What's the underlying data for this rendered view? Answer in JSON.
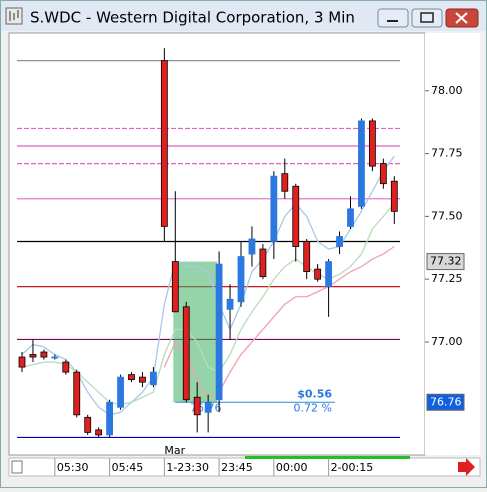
{
  "chart_data": {
    "type": "candlestick",
    "title": "S.WDC - Western Digital Corporation, 3 Min",
    "date_label": "Mar",
    "categories": [
      null,
      null,
      null,
      "05:30",
      null,
      null,
      null,
      null,
      "05:45",
      null,
      null,
      null,
      null,
      "1-23:30",
      null,
      null,
      null,
      null,
      "23:45",
      null,
      null,
      null,
      null,
      "00:00",
      null,
      null,
      null,
      null,
      "2-00:15",
      null,
      null,
      null,
      null,
      null,
      null
    ],
    "open": [
      76.94,
      76.95,
      76.96,
      76.94,
      76.92,
      76.88,
      76.7,
      76.65,
      76.63,
      76.74,
      76.87,
      76.86,
      76.83,
      78.12,
      77.32,
      77.14,
      76.78,
      76.72,
      76.77,
      77.13,
      77.16,
      77.35,
      77.37,
      77.4,
      77.67,
      77.62,
      77.4,
      77.29,
      77.22,
      77.38,
      77.46,
      77.54,
      77.88,
      77.71,
      77.64
    ],
    "high": [
      76.96,
      77.01,
      76.97,
      76.95,
      76.93,
      76.89,
      76.71,
      76.66,
      76.77,
      76.87,
      76.88,
      76.88,
      76.9,
      78.17,
      77.6,
      77.16,
      76.84,
      76.79,
      77.36,
      77.23,
      77.4,
      77.46,
      77.39,
      77.68,
      77.73,
      77.63,
      77.41,
      77.31,
      77.33,
      77.44,
      77.58,
      77.89,
      77.89,
      77.73,
      77.66
    ],
    "low": [
      76.88,
      76.92,
      76.93,
      76.93,
      76.87,
      76.7,
      76.63,
      76.62,
      76.62,
      76.73,
      76.84,
      76.82,
      76.82,
      77.4,
      77.12,
      76.76,
      76.64,
      76.64,
      76.72,
      77.01,
      77.14,
      77.3,
      77.25,
      77.33,
      77.57,
      77.32,
      77.25,
      77.24,
      77.1,
      77.35,
      77.45,
      77.53,
      77.68,
      77.61,
      77.47
    ],
    "close": [
      76.9,
      76.94,
      76.94,
      76.94,
      76.88,
      76.71,
      76.64,
      76.63,
      76.76,
      76.86,
      76.85,
      76.84,
      76.88,
      77.46,
      77.12,
      76.77,
      76.71,
      76.76,
      77.31,
      77.17,
      77.34,
      77.41,
      77.26,
      77.66,
      77.6,
      77.38,
      77.28,
      77.25,
      77.32,
      77.42,
      77.53,
      77.88,
      77.7,
      77.63,
      77.52
    ],
    "up_color": "#2a78e0",
    "down_color": "#e02020",
    "series": [
      {
        "color": "#a8c8e8",
        "values": [
          76.95,
          76.99,
          76.98,
          76.95,
          76.93,
          76.88,
          76.8,
          76.74,
          76.71,
          76.72,
          76.76,
          76.8,
          76.86,
          77.15,
          77.32,
          77.3,
          77.3,
          77.28,
          77.15,
          77.05,
          77.15,
          77.28,
          77.33,
          77.4,
          77.5,
          77.55,
          77.5,
          77.4,
          77.37,
          77.38,
          77.45,
          77.52,
          77.6,
          77.68,
          77.74
        ]
      },
      {
        "color": "#b8dcb8",
        "values": [
          76.9,
          76.91,
          76.92,
          76.92,
          76.91,
          76.88,
          76.84,
          76.8,
          76.76,
          76.75,
          76.76,
          76.78,
          76.8,
          76.95,
          77.05,
          77.05,
          77.0,
          76.9,
          76.88,
          76.95,
          77.05,
          77.12,
          77.18,
          77.25,
          77.3,
          77.33,
          77.3,
          77.27,
          77.25,
          77.27,
          77.3,
          77.35,
          77.45,
          77.5,
          77.55
        ]
      },
      {
        "color": "#f0a0b8",
        "values": [
          null,
          null,
          null,
          null,
          null,
          null,
          null,
          null,
          null,
          null,
          null,
          null,
          null,
          76.9,
          77.0,
          76.95,
          76.85,
          76.78,
          76.8,
          76.88,
          76.95,
          77.0,
          77.05,
          77.1,
          77.15,
          77.18,
          77.18,
          77.2,
          77.22,
          77.25,
          77.28,
          77.3,
          77.33,
          77.35,
          77.38
        ]
      }
    ],
    "levels": [
      {
        "value": 78.12,
        "color": "#909090",
        "dash": false
      },
      {
        "value": 77.85,
        "color": "#e060c0",
        "dash": true
      },
      {
        "value": 77.78,
        "color": "#e060c0",
        "dash": false
      },
      {
        "value": 77.71,
        "color": "#e060c0",
        "dash": true
      },
      {
        "value": 77.57,
        "color": "#e878d0",
        "dash": false
      },
      {
        "value": 77.4,
        "color": "#000000",
        "dash": false
      },
      {
        "value": 77.22,
        "color": "#c00000",
        "dash": false
      },
      {
        "value": 77.01,
        "color": "#800060",
        "dash": false
      },
      {
        "value": 76.62,
        "color": "#0000c0",
        "dash": false
      }
    ],
    "position": {
      "entry": 77.32,
      "exit": 76.76,
      "start": 14,
      "end": 18,
      "color": "#3cb060",
      "gain": "$0.56",
      "percent": "0.72 %",
      "exit_label": "76.76"
    },
    "price_labels": [
      {
        "value": 77.32,
        "color": "#d8d8d8"
      },
      {
        "value": 76.76,
        "color": "#1060e0"
      }
    ],
    "ylim": [
      76.55,
      78.23
    ],
    "yticks": [
      {
        "value": 78,
        "label": "78.00"
      },
      77.75,
      {
        "value": 77.5,
        "label": "77.50"
      },
      77.25,
      {
        "value": 77,
        "label": "77.00"
      }
    ]
  }
}
